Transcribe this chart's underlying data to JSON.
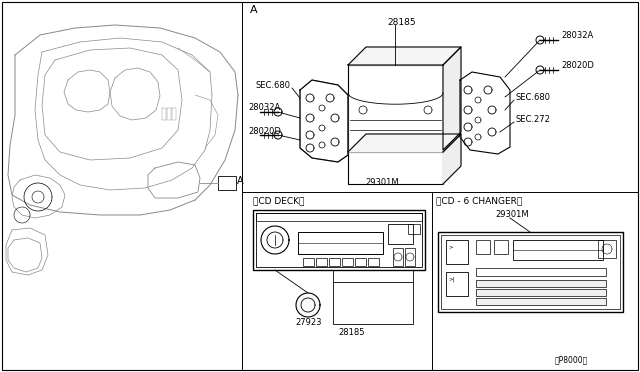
{
  "bg_color": "#ffffff",
  "line_color": "#000000",
  "text_color": "#000000",
  "fig_width": 6.4,
  "fig_height": 3.72,
  "dpi": 100,
  "labels": {
    "A_panel": "A",
    "cd_deck": "〈CD DECK〉",
    "cd_6_changer": "〈CD - 6 CHANGER〉",
    "ref_code": "〈P8000〉",
    "part_A": "A",
    "part_28185": "28185",
    "part_28032A_top": "28032A",
    "part_28020D_top": "28020D",
    "part_SEC680_top": "SEC.680",
    "part_SEC680_left": "SEC.680",
    "part_SEC272": "SEC.272",
    "part_28032A_left": "28032A",
    "part_28020D_left": "28020D",
    "part_29301M_top": "29301M",
    "part_27923": "27923",
    "part_28185_bot": "28185",
    "part_29301M_bot": "29301M"
  }
}
